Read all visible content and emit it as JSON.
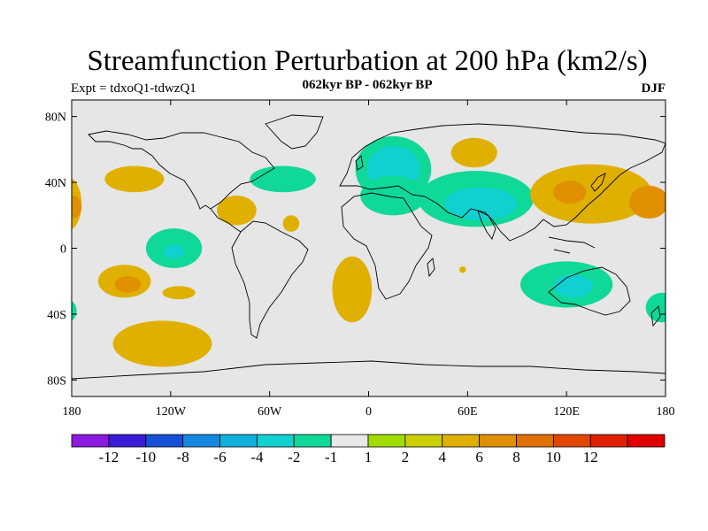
{
  "title": "Streamfunction Perturbation at 200 hPa (km2/s)",
  "experiment_label": "Expt = tdxoQ1-tdwzQ1",
  "period_label": "062kyr BP - 062kyr BP",
  "season_label": "DJF",
  "y_ticks": [
    {
      "label": "80N",
      "lat": 80
    },
    {
      "label": "40N",
      "lat": 40
    },
    {
      "label": "0",
      "lat": 0
    },
    {
      "label": "40S",
      "lat": -40
    },
    {
      "label": "80S",
      "lat": -80
    }
  ],
  "x_ticks": [
    {
      "label": "180",
      "lon": -180
    },
    {
      "label": "120W",
      "lon": -120
    },
    {
      "label": "60W",
      "lon": -60
    },
    {
      "label": "0",
      "lon": 0
    },
    {
      "label": "60E",
      "lon": 60
    },
    {
      "label": "120E",
      "lon": 120
    },
    {
      "label": "180",
      "lon": 180
    }
  ],
  "colorbar": {
    "colors": [
      "#8a1ae0",
      "#3a1cd8",
      "#1650d8",
      "#1488e0",
      "#10b0dc",
      "#10d0d0",
      "#10d898",
      "#e8e8e8",
      "#a0dc00",
      "#ccd000",
      "#e0b000",
      "#e09000",
      "#e07000",
      "#e04800",
      "#e02000",
      "#e00000"
    ],
    "labels": [
      "-12",
      "-10",
      "-8",
      "-6",
      "-4",
      "-2",
      "-1",
      "1",
      "2",
      "4",
      "6",
      "8",
      "10",
      "12"
    ]
  },
  "contours": [
    {
      "lon": -142,
      "lat": 42,
      "rx": 18,
      "ry": 8,
      "level": "2"
    },
    {
      "lon": -182,
      "lat": 27,
      "rx": 8,
      "ry": 16,
      "level": "2"
    },
    {
      "lon": -179,
      "lat": 25,
      "rx": 5,
      "ry": 7,
      "level": "4"
    },
    {
      "lon": -148,
      "lat": -20,
      "rx": 16,
      "ry": 10,
      "level": "2"
    },
    {
      "lon": -146,
      "lat": -22,
      "rx": 8,
      "ry": 5,
      "level": "4"
    },
    {
      "lon": -125,
      "lat": -58,
      "rx": 30,
      "ry": 14,
      "level": "2"
    },
    {
      "lon": -115,
      "lat": -27,
      "rx": 10,
      "ry": 4,
      "level": "2"
    },
    {
      "lon": -118,
      "lat": 0,
      "rx": 17,
      "ry": 12,
      "level": "-1"
    },
    {
      "lon": -118,
      "lat": -2,
      "rx": 6,
      "ry": 4,
      "level": "-2"
    },
    {
      "lon": -80,
      "lat": 23,
      "rx": 12,
      "ry": 9,
      "level": "2"
    },
    {
      "lon": -52,
      "lat": 42,
      "rx": 20,
      "ry": 8,
      "level": "-1"
    },
    {
      "lon": -47,
      "lat": 15,
      "rx": 5,
      "ry": 5,
      "level": "2"
    },
    {
      "lon": -181,
      "lat": -38,
      "rx": 4,
      "ry": 6,
      "level": "-1"
    },
    {
      "lon": -10,
      "lat": -25,
      "rx": 12,
      "ry": 20,
      "level": "2"
    },
    {
      "lon": 15,
      "lat": 48,
      "rx": 23,
      "ry": 20,
      "level": "-1"
    },
    {
      "lon": 15,
      "lat": 48,
      "rx": 16,
      "ry": 14,
      "level": "-2"
    },
    {
      "lon": 15,
      "lat": 32,
      "rx": 20,
      "ry": 12,
      "level": "-1"
    },
    {
      "lon": 65,
      "lat": 30,
      "rx": 35,
      "ry": 17,
      "level": "-1"
    },
    {
      "lon": 68,
      "lat": 27,
      "rx": 22,
      "ry": 10,
      "level": "-2"
    },
    {
      "lon": 64,
      "lat": 58,
      "rx": 14,
      "ry": 9,
      "level": "2"
    },
    {
      "lon": 135,
      "lat": 33,
      "rx": 37,
      "ry": 18,
      "level": "2"
    },
    {
      "lon": 122,
      "lat": 34,
      "rx": 10,
      "ry": 7,
      "level": "4"
    },
    {
      "lon": 170,
      "lat": 28,
      "rx": 12,
      "ry": 10,
      "level": "4"
    },
    {
      "lon": 120,
      "lat": -22,
      "rx": 28,
      "ry": 14,
      "level": "-1"
    },
    {
      "lon": 124,
      "lat": -23,
      "rx": 12,
      "ry": 7,
      "level": "-2"
    },
    {
      "lon": 178,
      "lat": -36,
      "rx": 10,
      "ry": 9,
      "level": "-1"
    },
    {
      "lon": 57,
      "lat": -13,
      "rx": 2,
      "ry": 2,
      "level": "2"
    }
  ]
}
